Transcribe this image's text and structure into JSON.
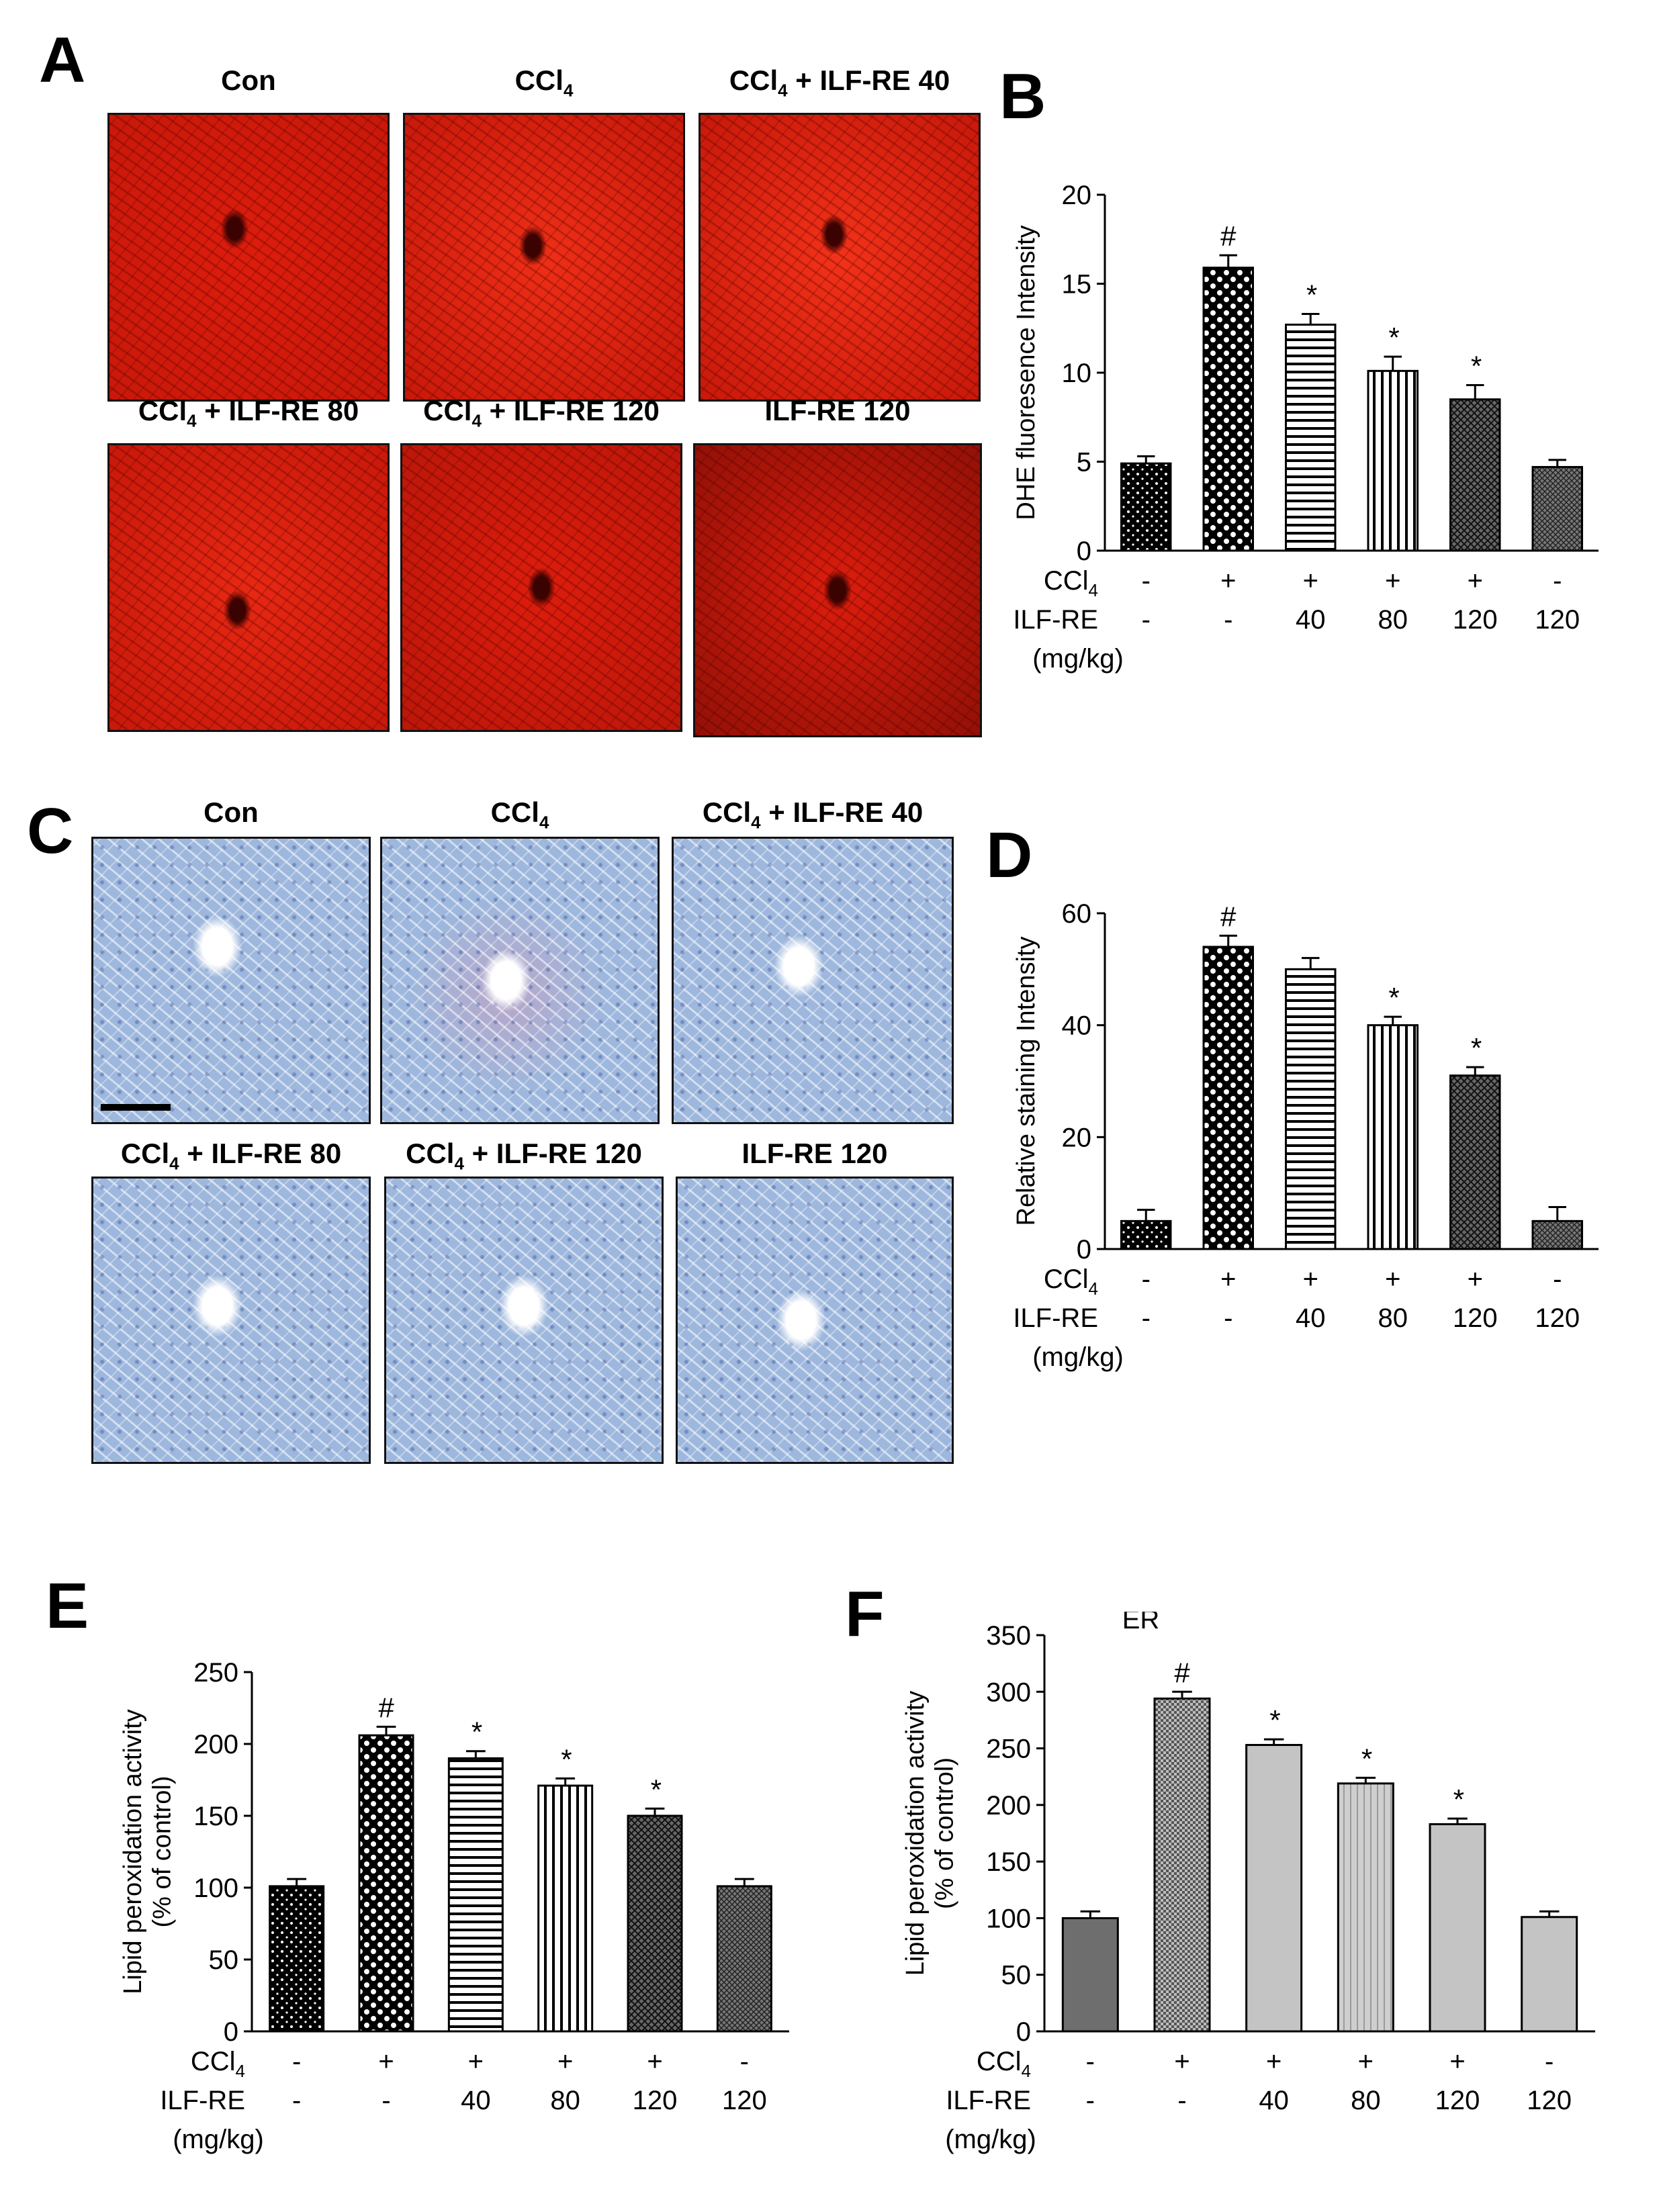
{
  "panels": {
    "A": {
      "label": "A",
      "titles": [
        "Con",
        "CCl",
        "CCl + ILF-RE 40",
        "CCl + ILF-RE 80",
        "CCl + ILF-RE 120",
        "ILF-RE 120"
      ],
      "stain_color": "#d81b0b"
    },
    "C": {
      "label": "C",
      "titles": [
        "Con",
        "CCl",
        "CCl + ILF-RE 40",
        "CCl + ILF-RE 80",
        "CCl + ILF-RE 120",
        "ILF-RE 120"
      ],
      "stain_color": "#9db7dd"
    },
    "B": {
      "label": "B"
    },
    "D": {
      "label": "D"
    },
    "E": {
      "label": "E"
    },
    "F": {
      "label": "F"
    }
  },
  "row_labels": {
    "ccl4": "CCl",
    "ccl4_sub": "4",
    "ilf": "ILF-RE",
    "unit": "(mg/kg)",
    "ccl4_signs": [
      "-",
      "+",
      "+",
      "+",
      "+",
      "-"
    ],
    "ilf_doses": [
      "-",
      "-",
      "40",
      "80",
      "120",
      "120"
    ]
  },
  "chart_data": [
    {
      "id": "B",
      "type": "bar",
      "ylabel": "DHE fluoresence Intensity",
      "ylim": [
        0,
        20
      ],
      "yticks": [
        0,
        5,
        10,
        15,
        20
      ],
      "values": [
        4.9,
        15.9,
        12.7,
        10.1,
        8.5,
        4.7
      ],
      "errors": [
        0.4,
        0.7,
        0.6,
        0.8,
        0.8,
        0.4
      ],
      "annotations": [
        "",
        "#",
        "*",
        "*",
        "*",
        ""
      ],
      "patterns": [
        "dots",
        "bigdots",
        "hlines",
        "vlines",
        "cross",
        "fine"
      ]
    },
    {
      "id": "D",
      "type": "bar",
      "ylabel": "Relative staining Intensity",
      "ylim": [
        0,
        60
      ],
      "yticks": [
        0,
        20,
        40,
        60
      ],
      "values": [
        5.0,
        54.0,
        50.0,
        40.0,
        31.0,
        5.0
      ],
      "errors": [
        2.0,
        2.0,
        2.0,
        1.5,
        1.5,
        2.5
      ],
      "annotations": [
        "",
        "#",
        "",
        "*",
        "*",
        ""
      ],
      "patterns": [
        "dots",
        "bigdots",
        "hlines",
        "vlines",
        "cross",
        "fine"
      ]
    },
    {
      "id": "E",
      "type": "bar",
      "ylabel": "Lipid peroxidation activity",
      "ylabel2": "(% of control)",
      "ylim": [
        0,
        250
      ],
      "yticks": [
        0,
        50,
        100,
        150,
        200,
        250
      ],
      "values": [
        101,
        206,
        190,
        171,
        150,
        101
      ],
      "errors": [
        5,
        6,
        5,
        5,
        5,
        5
      ],
      "annotations": [
        "",
        "#",
        "*",
        "*",
        "*",
        ""
      ],
      "patterns": [
        "dots",
        "bigdots",
        "hlines",
        "vlines",
        "cross",
        "fine"
      ]
    },
    {
      "id": "F",
      "type": "bar",
      "title": "ER",
      "ylabel": "Lipid peroxidation activity",
      "ylabel2": "(% of control)",
      "ylim": [
        0,
        350
      ],
      "yticks": [
        0,
        50,
        100,
        150,
        200,
        250,
        300,
        350
      ],
      "values": [
        100,
        294,
        253,
        219,
        183,
        101
      ],
      "errors": [
        6,
        6,
        5,
        5,
        5,
        5
      ],
      "annotations": [
        "",
        "#",
        "*",
        "*",
        "*",
        ""
      ],
      "patterns": [
        "solid",
        "checker",
        "gray",
        "gray-v",
        "gray",
        "gray"
      ]
    }
  ]
}
